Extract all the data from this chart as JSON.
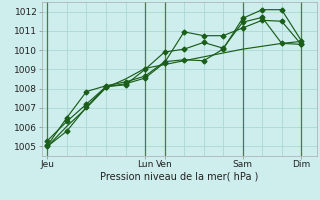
{
  "background_color": "#ceeeed",
  "grid_color": "#aad8d8",
  "line_color": "#1a5e1a",
  "x_labels": [
    "Jeu",
    "",
    "",
    "",
    "",
    "Lun",
    "Ven",
    "",
    "",
    "",
    "Sam",
    "",
    "",
    "Dim"
  ],
  "x_label_days": [
    "Jeu",
    "Lun",
    "Ven",
    "Sam",
    "Dim"
  ],
  "x_label_day_pos": [
    0,
    5,
    6,
    10,
    13
  ],
  "ylim": [
    1004.5,
    1012.5
  ],
  "xlim": [
    -0.3,
    13.8
  ],
  "xlabel": "Pression niveau de la mer( hPa )",
  "yticks": [
    1005,
    1006,
    1007,
    1008,
    1009,
    1010,
    1011,
    1012
  ],
  "series1": [
    1005.0,
    1005.8,
    1007.05,
    1008.1,
    1008.25,
    1008.55,
    1009.35,
    1010.95,
    1010.75,
    1010.75,
    1011.15,
    1011.55,
    1011.5,
    1010.3
  ],
  "series2": [
    1005.3,
    1006.3,
    1007.2,
    1008.1,
    1008.2,
    1009.0,
    1009.9,
    1010.05,
    1010.4,
    1010.1,
    1011.45,
    1011.7,
    1010.35,
    1010.3
  ],
  "series3": [
    1005.05,
    1006.5,
    1007.85,
    1008.15,
    1008.35,
    1008.65,
    1009.4,
    1009.5,
    1009.45,
    1010.05,
    1011.65,
    1012.1,
    1012.1,
    1010.5
  ],
  "series4": [
    1005.0,
    1006.05,
    1007.0,
    1008.05,
    1008.5,
    1009.05,
    1009.25,
    1009.45,
    1009.65,
    1009.85,
    1010.05,
    1010.2,
    1010.35,
    1010.45
  ],
  "vlines_dark": [
    0,
    5,
    6,
    10,
    13
  ],
  "vlines_light": [
    1,
    2,
    3,
    4,
    7,
    8,
    9,
    11,
    12
  ],
  "vline_dark_color": "#4a7a4a",
  "vline_light_color": "#aad8d8",
  "marker": "D",
  "markersize": 2.5,
  "linewidth": 0.85
}
